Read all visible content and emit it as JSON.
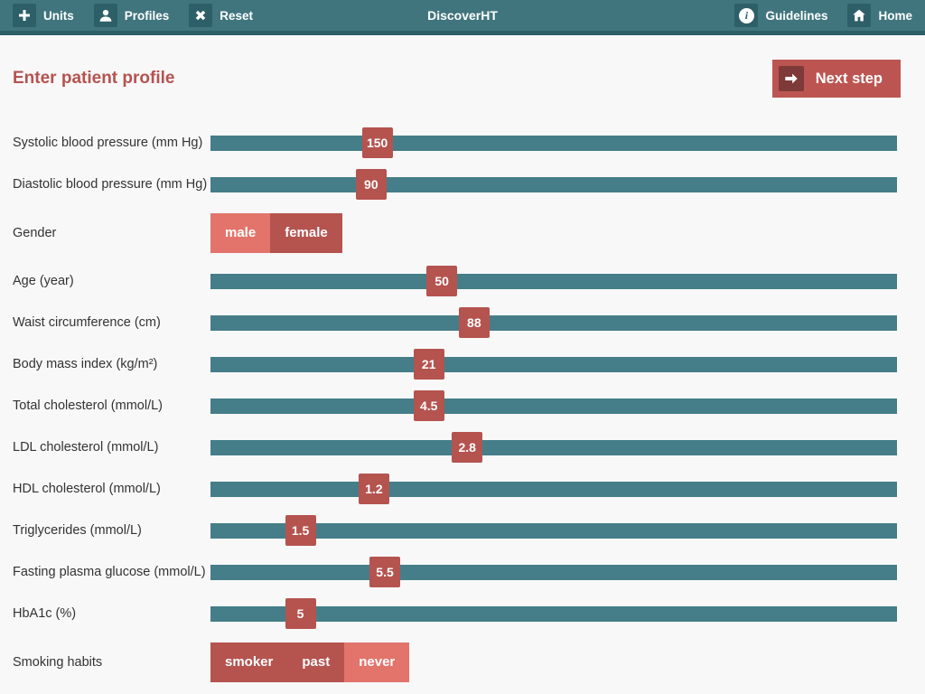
{
  "topbar": {
    "title": "DiscoverHT",
    "left_items": [
      {
        "label": "Units",
        "icon": "plus-icon"
      },
      {
        "label": "Profiles",
        "icon": "person-icon"
      },
      {
        "label": "Reset",
        "icon": "x-icon"
      }
    ],
    "right_items": [
      {
        "label": "Guidelines",
        "icon": "info-icon"
      },
      {
        "label": "Home",
        "icon": "home-icon"
      }
    ]
  },
  "page": {
    "title": "Enter patient profile",
    "next_step_label": "Next step"
  },
  "form": {
    "rows": [
      {
        "type": "slider",
        "label": "Systolic blood pressure (mm Hg)",
        "value": "150",
        "position_pct": 24.3
      },
      {
        "type": "slider",
        "label": "Diastolic blood pressure (mm Hg)",
        "value": "90",
        "position_pct": 23.4
      },
      {
        "type": "toggle",
        "label": "Gender",
        "options": [
          {
            "label": "male",
            "selected": true
          },
          {
            "label": "female",
            "selected": false
          }
        ]
      },
      {
        "type": "slider",
        "label": "Age (year)",
        "value": "50",
        "position_pct": 33.7
      },
      {
        "type": "slider",
        "label": "Waist circumference (cm)",
        "value": "88",
        "position_pct": 38.4
      },
      {
        "type": "slider",
        "label": "Body mass index (kg/m²)",
        "value": "21",
        "position_pct": 31.8
      },
      {
        "type": "slider",
        "label": "Total cholesterol (mmol/L)",
        "value": "4.5",
        "position_pct": 31.8
      },
      {
        "type": "slider",
        "label": "LDL cholesterol (mmol/L)",
        "value": "2.8",
        "position_pct": 37.4
      },
      {
        "type": "slider",
        "label": "HDL cholesterol (mmol/L)",
        "value": "1.2",
        "position_pct": 23.8
      },
      {
        "type": "slider",
        "label": "Triglycerides (mmol/L)",
        "value": "1.5",
        "position_pct": 13.1
      },
      {
        "type": "slider",
        "label": "Fasting plasma glucose (mmol/L)",
        "value": "5.5",
        "position_pct": 25.4
      },
      {
        "type": "slider",
        "label": "HbA1c (%)",
        "value": "5",
        "position_pct": 13.1
      },
      {
        "type": "toggle",
        "label": "Smoking habits",
        "options": [
          {
            "label": "smoker",
            "selected": false
          },
          {
            "label": "past",
            "selected": false
          },
          {
            "label": "never",
            "selected": true
          }
        ]
      }
    ]
  },
  "colors": {
    "topbar_bg": "#40757e",
    "topbar_icon_bg": "#2d5f68",
    "accent_red": "#b5534f",
    "accent_salmon": "#e2746b",
    "track_teal": "#457e88",
    "next_icon_bg": "#7d3a38",
    "page_bg": "#f8f8f8"
  }
}
